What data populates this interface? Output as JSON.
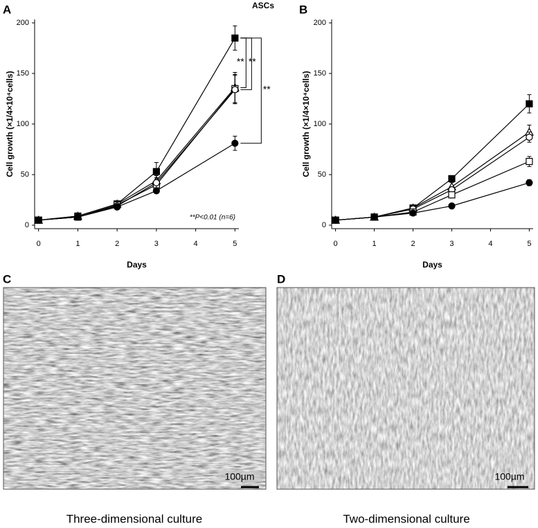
{
  "chart_data": [
    {
      "type": "line",
      "panel": "A",
      "title": "ASCs",
      "y_label": "Cell  growth (×1/4×10⁴cells)",
      "x_label": "Days",
      "x": [
        0,
        1,
        2,
        3,
        5
      ],
      "xlim": [
        -0.1,
        5.1
      ],
      "xticks": [
        0,
        1,
        2,
        3,
        4,
        5
      ],
      "ylim": [
        0,
        200
      ],
      "yticks": [
        0,
        50,
        100,
        150,
        200
      ],
      "color": "#000000",
      "series": [
        {
          "marker": "filled-square",
          "values": [
            5,
            9,
            21,
            53,
            185
          ],
          "errors": [
            1,
            1,
            2,
            9,
            12
          ]
        },
        {
          "marker": "open-triangle",
          "values": [
            5,
            9,
            21,
            44,
            136
          ],
          "errors": [
            1,
            1,
            2,
            5,
            15
          ]
        },
        {
          "marker": "open-square",
          "values": [
            5,
            8,
            20,
            40,
            135
          ],
          "errors": [
            1,
            1,
            2,
            5,
            14
          ]
        },
        {
          "marker": "open-circle",
          "values": [
            5,
            8,
            19,
            42,
            134
          ],
          "errors": [
            1,
            1,
            2,
            5,
            14
          ]
        },
        {
          "marker": "filled-circle",
          "values": [
            5,
            8,
            18,
            34,
            81
          ],
          "errors": [
            1,
            1,
            1,
            2,
            7
          ]
        }
      ],
      "significance": [
        "**",
        "**",
        "**"
      ],
      "note": "**P<0.01 (n=6)"
    },
    {
      "type": "line",
      "panel": "B",
      "y_label": "Cell  growth (×1/4×10⁴cells)",
      "x_label": "Days",
      "x": [
        0,
        1,
        2,
        3,
        5
      ],
      "xlim": [
        -0.1,
        5.1
      ],
      "xticks": [
        0,
        1,
        2,
        3,
        4,
        5
      ],
      "ylim": [
        0,
        200
      ],
      "yticks": [
        0,
        50,
        100,
        150,
        200
      ],
      "color": "#000000",
      "series": [
        {
          "marker": "filled-square",
          "values": [
            5,
            8,
            17,
            46,
            120
          ],
          "errors": [
            1,
            1,
            2,
            2,
            9
          ]
        },
        {
          "marker": "open-triangle",
          "values": [
            5,
            8,
            17,
            38,
            92
          ],
          "errors": [
            1,
            1,
            2,
            4,
            7
          ]
        },
        {
          "marker": "open-circle",
          "values": [
            5,
            8,
            16,
            35,
            87
          ],
          "errors": [
            1,
            1,
            2,
            3,
            5
          ]
        },
        {
          "marker": "open-square",
          "values": [
            5,
            8,
            13,
            30,
            63
          ],
          "errors": [
            1,
            1,
            1,
            3,
            5
          ]
        },
        {
          "marker": "filled-circle",
          "values": [
            5,
            8,
            12,
            19,
            42
          ],
          "errors": [
            1,
            1,
            1,
            2,
            3
          ]
        }
      ]
    }
  ],
  "panels": [
    {
      "label": "C",
      "scale_bar": "100µm",
      "caption": "Three-dimensional culture"
    },
    {
      "label": "D",
      "scale_bar": "100µm",
      "caption": "Two-dimensional culture"
    }
  ]
}
